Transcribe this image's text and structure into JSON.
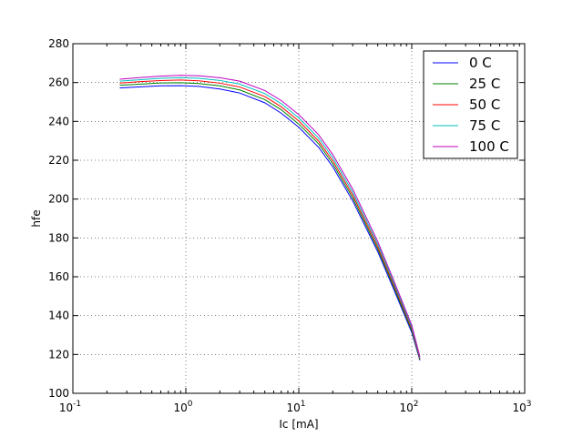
{
  "chart_data": {
    "type": "line",
    "title": "",
    "xlabel": "Ic [mA]",
    "ylabel": "hfe",
    "xscale": "log",
    "xlim": [
      0.1,
      1000
    ],
    "ylim": [
      100,
      280
    ],
    "grid": true,
    "legend_position": "top-right",
    "x_ticks": [
      {
        "base": "10",
        "exp": "-1"
      },
      {
        "base": "10",
        "exp": "0"
      },
      {
        "base": "10",
        "exp": "1"
      },
      {
        "base": "10",
        "exp": "2"
      },
      {
        "base": "10",
        "exp": "3"
      }
    ],
    "y_ticks": [
      "100",
      "120",
      "140",
      "160",
      "180",
      "200",
      "220",
      "240",
      "260",
      "280"
    ],
    "x": [
      0.26,
      0.4,
      0.6,
      0.9,
      1.3,
      2,
      3,
      5,
      7,
      10,
      15,
      20,
      30,
      50,
      70,
      100,
      118
    ],
    "series": [
      {
        "name": "0 C",
        "color": "#0000ff",
        "values": [
          257.2,
          257.8,
          258.3,
          258.4,
          258.0,
          256.7,
          254.6,
          249.6,
          244.2,
          237.0,
          226.6,
          216.6,
          199.1,
          172.9,
          152.9,
          131.3,
          117.0
        ]
      },
      {
        "name": "25 C",
        "color": "#008000",
        "values": [
          258.6,
          259.2,
          259.8,
          259.9,
          259.5,
          258.3,
          256.2,
          251.2,
          246.0,
          238.6,
          228.4,
          218.2,
          200.6,
          174.2,
          154.1,
          132.2,
          117.4
        ]
      },
      {
        "name": "50 C",
        "color": "#ff0000",
        "values": [
          259.7,
          260.5,
          261.0,
          261.3,
          260.9,
          259.7,
          257.7,
          252.8,
          247.5,
          240.2,
          229.8,
          219.7,
          202.1,
          175.5,
          155.2,
          133.2,
          117.9
        ]
      },
      {
        "name": "75 C",
        "color": "#00bfbf",
        "values": [
          260.7,
          261.5,
          262.2,
          262.5,
          262.2,
          261.1,
          259.2,
          254.3,
          249.1,
          241.8,
          231.4,
          221.3,
          203.6,
          176.8,
          156.3,
          134.0,
          118.4
        ]
      },
      {
        "name": "100 C",
        "color": "#bf00bf",
        "values": [
          261.7,
          262.6,
          263.3,
          263.7,
          263.5,
          262.5,
          260.7,
          255.9,
          250.7,
          243.5,
          233.1,
          222.9,
          205.2,
          178.2,
          157.5,
          135.0,
          118.9
        ]
      }
    ]
  }
}
